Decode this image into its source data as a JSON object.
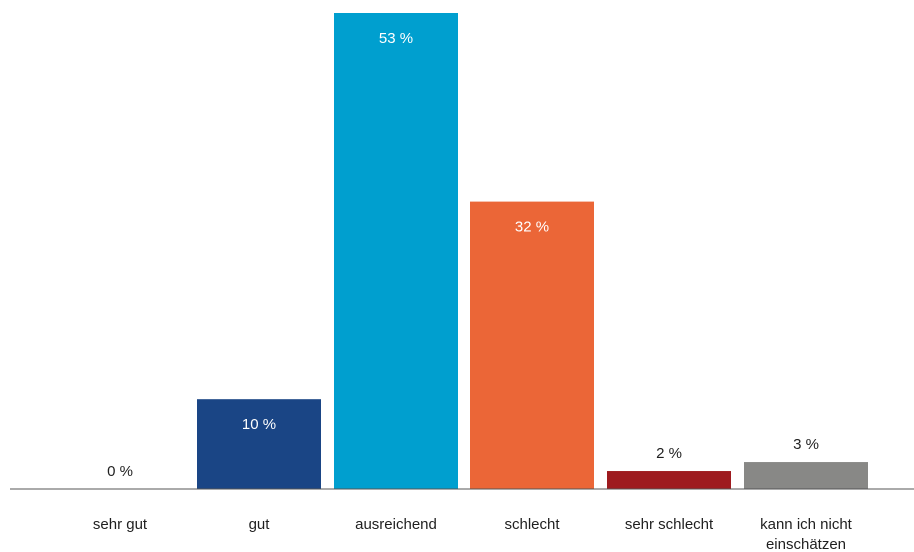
{
  "chart_data": {
    "type": "bar",
    "title": "",
    "xlabel": "",
    "ylabel": "",
    "ylim": [
      0,
      53
    ],
    "grid": false,
    "legend": "none",
    "categories": [
      [
        "sehr gut"
      ],
      [
        "gut"
      ],
      [
        "ausreichend"
      ],
      [
        "schlecht"
      ],
      [
        "sehr schlecht"
      ],
      [
        "kann ich nicht",
        "einschätzen"
      ]
    ],
    "values": [
      0,
      10,
      53,
      32,
      2,
      3
    ],
    "value_labels": [
      "0 %",
      "10 %",
      "53 %",
      "32 %",
      "2 %",
      "3 %"
    ],
    "colors": [
      "#1a4585",
      "#1a4585",
      "#009fcf",
      "#eb6637",
      "#9e1b1f",
      "#888886"
    ],
    "label_inside": [
      false,
      true,
      true,
      true,
      false,
      false
    ],
    "label_colors": [
      "#1f1f1f",
      "#ffffff",
      "#ffffff",
      "#ffffff",
      "#1f1f1f",
      "#1f1f1f"
    ]
  }
}
